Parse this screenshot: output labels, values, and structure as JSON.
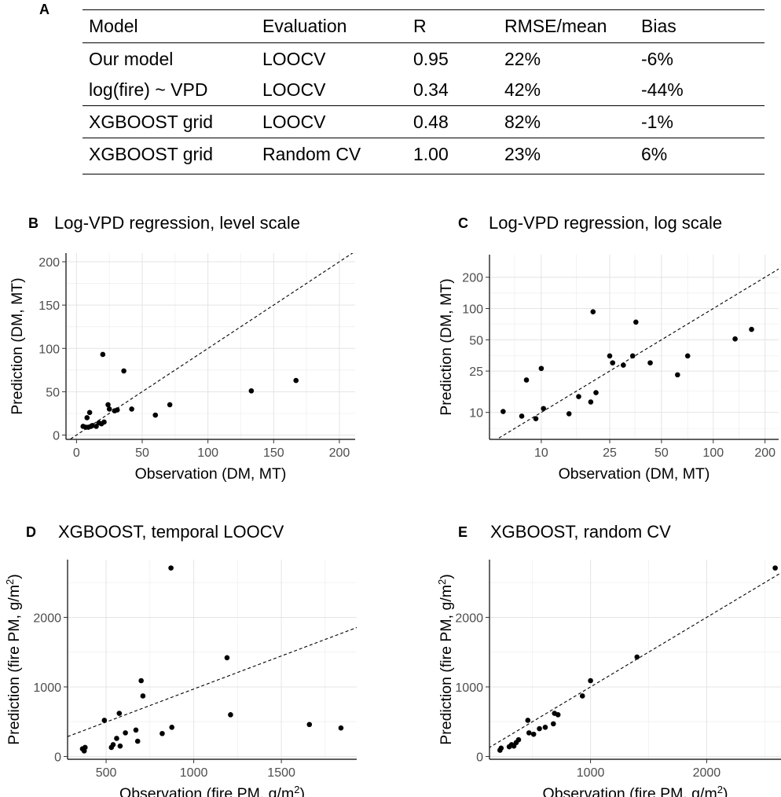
{
  "table": {
    "letter": "A",
    "headers": [
      "Model",
      "Evaluation",
      "R",
      "RMSE/mean",
      "Bias"
    ],
    "rows": [
      [
        "Our model",
        "LOOCV",
        "0.95",
        "22%",
        "-6%"
      ],
      [
        "log(fire) ~ VPD",
        "LOOCV",
        "0.34",
        "42%",
        "-44%"
      ],
      [
        "XGBOOST grid",
        "LOOCV",
        "0.48",
        "82%",
        "-1%"
      ],
      [
        "XGBOOST grid",
        "Random CV",
        "1.00",
        "23%",
        "6%"
      ]
    ]
  },
  "chart_data": [
    {
      "letter": "B",
      "type": "scatter",
      "title": "Log-VPD regression, level scale",
      "xlabel": "Observation (DM, MT)",
      "ylabel": "Prediction (DM, MT)",
      "xscale": "linear",
      "yscale": "linear",
      "xlim": [
        -8,
        212
      ],
      "ylim": [
        -5,
        210
      ],
      "xticks": [
        0,
        50,
        100,
        150,
        200
      ],
      "yticks": [
        0,
        50,
        100,
        150,
        200
      ],
      "xtick_labels": [
        "0",
        "50",
        "100",
        "150",
        "200"
      ],
      "ytick_labels": [
        "0",
        "50",
        "100",
        "150",
        "200"
      ],
      "xminor": [
        25,
        75,
        125,
        175
      ],
      "yminor": [
        25,
        75,
        125,
        175
      ],
      "reference_line": "y = x, dashed",
      "grid": true,
      "legend": "none",
      "x": [
        5,
        7,
        8,
        9,
        10,
        11,
        12,
        15,
        17,
        19,
        20,
        21,
        24,
        25,
        29,
        31,
        36,
        42,
        60,
        71,
        133,
        167
      ],
      "y": [
        10,
        9,
        20,
        9,
        26,
        10,
        11,
        10,
        14,
        13,
        93,
        15,
        35,
        30,
        28,
        29,
        74,
        30,
        23,
        35,
        51,
        63
      ]
    },
    {
      "letter": "C",
      "type": "scatter",
      "title": "Log-VPD regression, log scale",
      "xlabel": "Observation (DM, MT)",
      "ylabel": "Prediction (DM, MT)",
      "xscale": "log",
      "yscale": "log",
      "xlim": [
        5,
        240
      ],
      "ylim": [
        5.5,
        330
      ],
      "xticks": [
        10,
        25,
        50,
        100,
        200
      ],
      "yticks": [
        10,
        25,
        50,
        100,
        200
      ],
      "xtick_labels": [
        "10",
        "25",
        "50",
        "100",
        "200"
      ],
      "ytick_labels": [
        "10",
        "25",
        "50",
        "100",
        "200"
      ],
      "xminor": [
        7,
        16,
        35,
        71,
        141
      ],
      "yminor": [
        7,
        16,
        35,
        71,
        141
      ],
      "reference_line": "y = x, dashed",
      "grid": true,
      "legend": "none",
      "x": [
        6,
        7.7,
        8.2,
        9.3,
        10,
        10.3,
        14.5,
        16.5,
        19.4,
        20,
        20.8,
        25,
        26,
        30,
        34,
        35.5,
        43,
        62,
        71,
        134,
        167
      ],
      "y": [
        10.2,
        9.2,
        20.5,
        8.7,
        26.5,
        10.9,
        9.7,
        14.2,
        12.6,
        93,
        15.5,
        35,
        30,
        28.5,
        35,
        74,
        30,
        23,
        35,
        51,
        63
      ]
    },
    {
      "letter": "D",
      "type": "scatter",
      "title": "XGBOOST, temporal LOOCV",
      "xlabel": "Observation (fire PM, g/m",
      "ylabel": "Prediction (fire PM, g/m",
      "unit_superscript": "2",
      "label_close": ")",
      "xscale": "linear",
      "yscale": "linear",
      "xlim": [
        280,
        1930
      ],
      "ylim": [
        -40,
        2830
      ],
      "xticks": [
        500,
        1000,
        1500
      ],
      "yticks": [
        0,
        1000,
        2000
      ],
      "xtick_labels": [
        "500",
        "1000",
        "1500"
      ],
      "ytick_labels": [
        "0",
        "1000",
        "2000"
      ],
      "xminor": [
        750,
        1250,
        1750
      ],
      "yminor": [
        500,
        1500,
        2500
      ],
      "reference_line": "dashed, y = 0.95x + 20",
      "grid": true,
      "legend": "none",
      "x": [
        365,
        375,
        380,
        490,
        530,
        540,
        560,
        575,
        580,
        610,
        670,
        680,
        700,
        710,
        820,
        870,
        875,
        1190,
        1210,
        1660,
        1840
      ],
      "y": [
        110,
        80,
        130,
        520,
        130,
        170,
        260,
        620,
        150,
        340,
        380,
        220,
        1090,
        870,
        330,
        2710,
        420,
        1420,
        600,
        460,
        410
      ]
    },
    {
      "letter": "E",
      "type": "scatter",
      "title": "XGBOOST, random CV",
      "xlabel": "Observation (fire PM, g/m",
      "ylabel": "Prediction (fire PM, g/m",
      "unit_superscript": "2",
      "label_close": ")",
      "xscale": "linear",
      "yscale": "linear",
      "xlim": [
        130,
        2640
      ],
      "ylim": [
        -40,
        2830
      ],
      "xticks": [
        1000,
        2000
      ],
      "yticks": [
        0,
        1000,
        2000
      ],
      "xtick_labels": [
        "1000",
        "2000"
      ],
      "ytick_labels": [
        "0",
        "1000",
        "2000"
      ],
      "xminor": [
        500,
        1500,
        2500
      ],
      "yminor": [
        500,
        1500,
        2500
      ],
      "reference_line": "y = x, dashed",
      "grid": true,
      "legend": "none",
      "x": [
        220,
        230,
        300,
        320,
        340,
        360,
        380,
        460,
        470,
        510,
        560,
        610,
        680,
        690,
        720,
        930,
        1000,
        1400,
        2590
      ],
      "y": [
        90,
        120,
        140,
        170,
        150,
        200,
        240,
        520,
        340,
        320,
        400,
        420,
        470,
        620,
        600,
        870,
        1090,
        1430,
        2710
      ]
    }
  ]
}
